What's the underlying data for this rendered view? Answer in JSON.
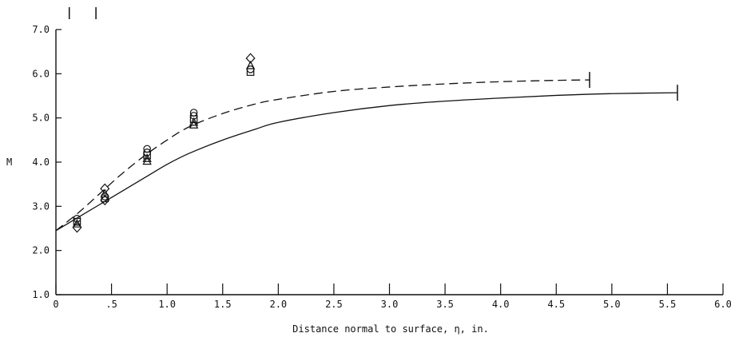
{
  "chart_data": {
    "type": "line",
    "xlabel": "Distance normal to surface, η, in.",
    "ylabel": "M",
    "xlim": [
      0,
      6.0
    ],
    "ylim": [
      1.0,
      7.0
    ],
    "x_tick_labels": [
      "0",
      ".5",
      "1.0",
      "1.5",
      "2.0",
      "2.5",
      "3.0",
      "3.5",
      "4.0",
      "4.5",
      "5.0",
      "5.5",
      "6.0"
    ],
    "x_tick_values": [
      0,
      0.5,
      1.0,
      1.5,
      2.0,
      2.5,
      3.0,
      3.5,
      4.0,
      4.5,
      5.0,
      5.5,
      6.0
    ],
    "y_tick_labels": [
      "1.0",
      "2.0",
      "3.0",
      "4.0",
      "5.0",
      "6.0",
      "7.0"
    ],
    "y_tick_values": [
      1.0,
      2.0,
      3.0,
      4.0,
      5.0,
      6.0,
      7.0
    ],
    "grid": false,
    "top_markers_x": [
      0.12,
      0.36
    ],
    "series": [
      {
        "style": "dashed",
        "x": [
          0,
          0.2,
          0.4,
          0.6,
          0.8,
          1.0,
          1.2,
          1.5,
          1.8,
          2.0,
          2.5,
          3.0,
          3.5,
          4.0,
          4.5,
          4.8
        ],
        "y": [
          2.45,
          2.85,
          3.3,
          3.75,
          4.15,
          4.5,
          4.8,
          5.1,
          5.32,
          5.42,
          5.6,
          5.7,
          5.77,
          5.82,
          5.85,
          5.86
        ],
        "end_bar_x": 4.8
      },
      {
        "style": "solid",
        "x": [
          0,
          0.2,
          0.5,
          0.8,
          1.0,
          1.2,
          1.5,
          1.8,
          2.0,
          2.5,
          3.0,
          3.5,
          4.0,
          4.5,
          5.0,
          5.59
        ],
        "y": [
          2.45,
          2.75,
          3.2,
          3.65,
          3.95,
          4.2,
          4.5,
          4.75,
          4.9,
          5.12,
          5.28,
          5.38,
          5.45,
          5.51,
          5.55,
          5.57
        ],
        "end_bar_x": 5.59
      }
    ],
    "symbols": [
      {
        "shape": "circle",
        "x": 0.19,
        "y": 2.72
      },
      {
        "shape": "square",
        "x": 0.19,
        "y": 2.65
      },
      {
        "shape": "triangle",
        "x": 0.19,
        "y": 2.6
      },
      {
        "shape": "diamond",
        "x": 0.19,
        "y": 2.52
      },
      {
        "shape": "diamond",
        "x": 0.44,
        "y": 3.4
      },
      {
        "shape": "triangle",
        "x": 0.44,
        "y": 3.28
      },
      {
        "shape": "circle",
        "x": 0.44,
        "y": 3.22
      },
      {
        "shape": "square",
        "x": 0.44,
        "y": 3.18
      },
      {
        "shape": "diamond",
        "x": 0.44,
        "y": 3.14
      },
      {
        "shape": "circle",
        "x": 0.82,
        "y": 4.3
      },
      {
        "shape": "circle",
        "x": 0.82,
        "y": 4.22
      },
      {
        "shape": "square",
        "x": 0.82,
        "y": 4.15
      },
      {
        "shape": "triangle",
        "x": 0.82,
        "y": 4.08
      },
      {
        "shape": "triangle",
        "x": 0.82,
        "y": 4.02
      },
      {
        "shape": "circle",
        "x": 1.24,
        "y": 5.12
      },
      {
        "shape": "circle",
        "x": 1.24,
        "y": 5.05
      },
      {
        "shape": "square",
        "x": 1.24,
        "y": 4.97
      },
      {
        "shape": "triangle",
        "x": 1.24,
        "y": 4.9
      },
      {
        "shape": "triangle",
        "x": 1.24,
        "y": 4.84
      },
      {
        "shape": "diamond",
        "x": 1.75,
        "y": 6.35
      },
      {
        "shape": "triangle",
        "x": 1.75,
        "y": 6.18
      },
      {
        "shape": "circle",
        "x": 1.75,
        "y": 6.1
      },
      {
        "shape": "square",
        "x": 1.75,
        "y": 6.04
      }
    ]
  }
}
